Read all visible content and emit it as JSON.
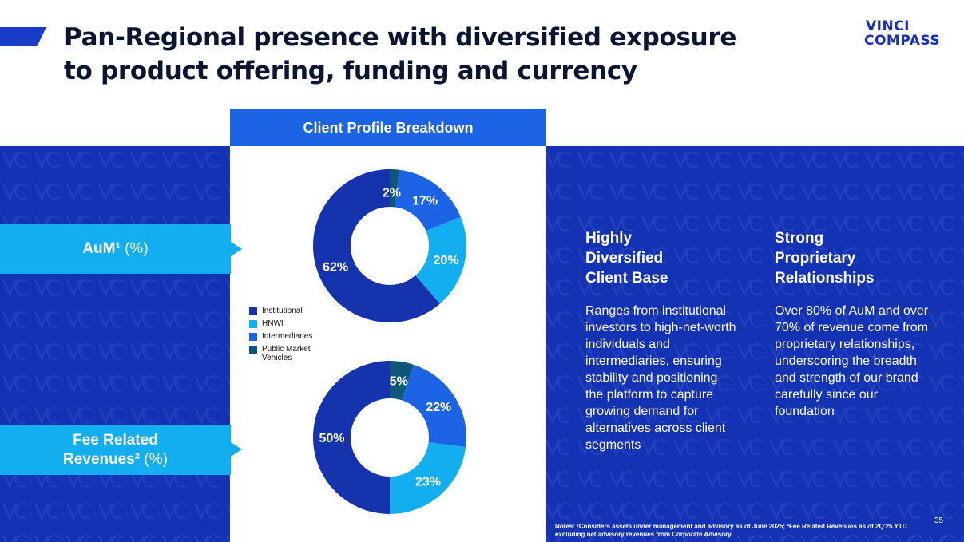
{
  "title_line1": "Pan-Regional presence with diversified exposure",
  "title_line2": "to product offering, funding and currency",
  "logo_line1": "VINCI",
  "logo_line2": "COMPASS",
  "panel_title": "Client Profile Breakdown",
  "aum_label": "AuM¹",
  "aum_unit": "(%)",
  "frr_label": "Fee Related",
  "frr_label2": "Revenues²",
  "frr_unit": "(%)",
  "colors": {
    "institutional": "#1533ad",
    "hnwi": "#12aef0",
    "intermediaries": "#1d63e6",
    "public_market": "#0e5779"
  },
  "chart_data": [
    {
      "type": "pie",
      "variant": "donut",
      "title": "AuM¹ (%)",
      "categories": [
        "Institutional",
        "HNWI",
        "Intermediaries",
        "Public Market Vehicles"
      ],
      "values": [
        62,
        20,
        17,
        2
      ],
      "labels": [
        "62%",
        "20%",
        "17%",
        "2%"
      ]
    },
    {
      "type": "pie",
      "variant": "donut",
      "title": "Fee Related Revenues² (%)",
      "categories": [
        "Institutional",
        "HNWI",
        "Intermediaries",
        "Public Market Vehicles"
      ],
      "values": [
        50,
        23,
        22,
        5
      ],
      "labels": [
        "50%",
        "23%",
        "22%",
        "5%"
      ]
    }
  ],
  "legend": [
    "Institutional",
    "HNWI",
    "Intermediaries",
    "Public Market Vehicles"
  ],
  "col1": {
    "heading": "Highly Diversified Client Base",
    "body": "Ranges from institutional investors to high-net-worth individuals and intermediaries, ensuring stability and positioning the platform to capture growing demand for alternatives across client segments"
  },
  "col2": {
    "heading": "Strong Proprietary Relationships",
    "body": "Over 80% of AuM and over 70% of revenue come from proprietary relationships, underscoring the breadth and strength of our brand carefully since our foundation"
  },
  "notes": "Notes: ¹Considers assets under management and advisory as of June 2025; ²Fee Related Revenues as of 2Q'25 YTD excluding net advisory revenues from Corporate Advisory.",
  "page_number": "35"
}
